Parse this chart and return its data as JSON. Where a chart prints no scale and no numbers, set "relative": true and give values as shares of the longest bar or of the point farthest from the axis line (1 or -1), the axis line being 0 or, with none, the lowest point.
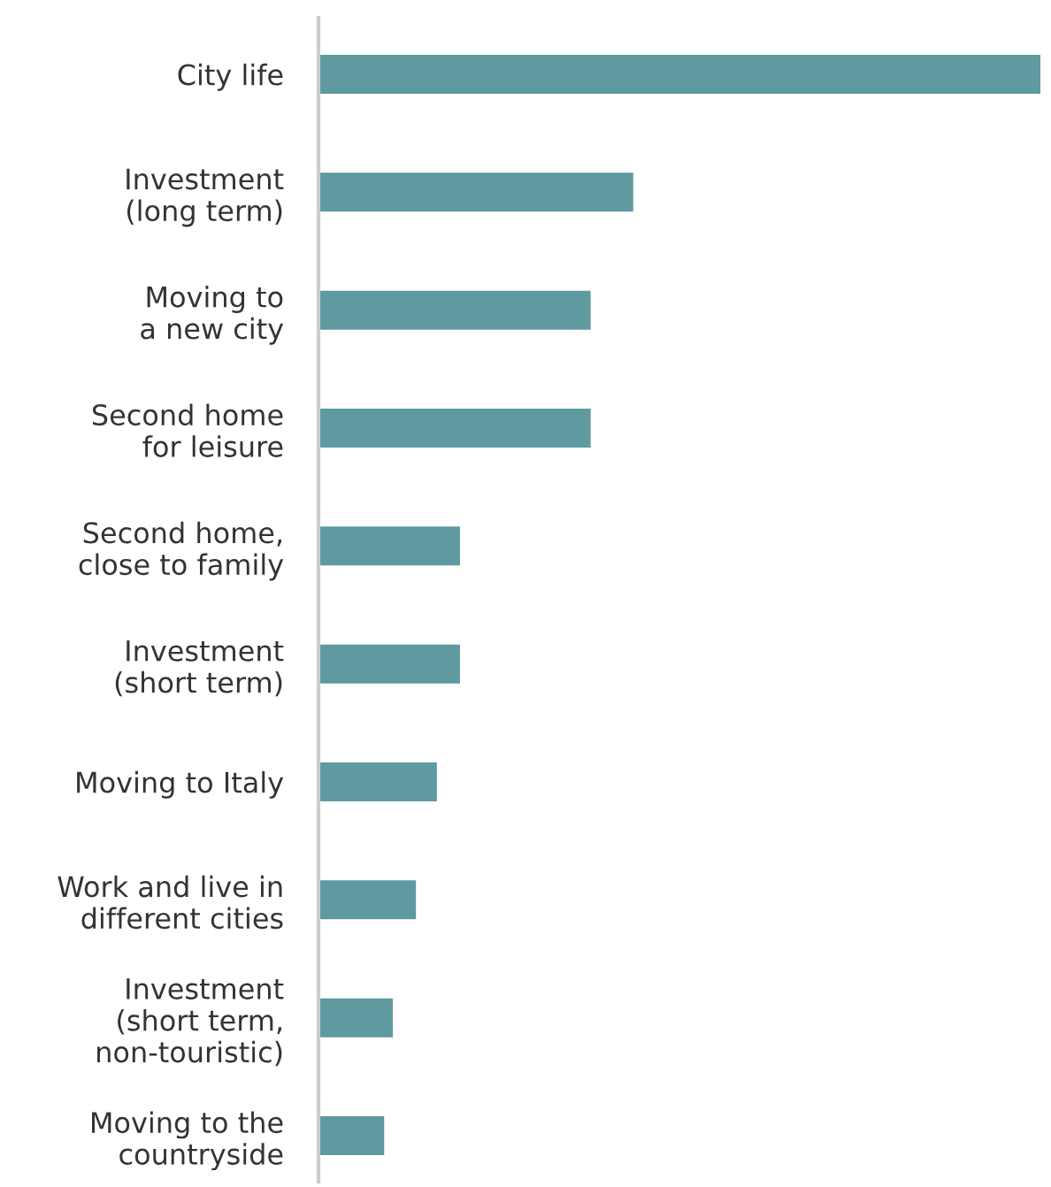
{
  "chart_data": {
    "type": "bar",
    "orientation": "horizontal",
    "relative": true,
    "categories": [
      "City life",
      "Investment\n(long term)",
      "Moving to\na new city",
      "Second home\nfor leisure",
      "Second home,\nclose to family",
      "Investment\n(short term)",
      "Moving to Italy",
      "Work and live in\ndifferent cities",
      "Investment\n(short term,\nnon-touristic)",
      "Moving to the\ncountryside"
    ],
    "values": [
      1,
      0.436,
      0.377,
      0.377,
      0.196,
      0.196,
      0.164,
      0.135,
      0.103,
      0.091
    ],
    "color": "#5e9aa0",
    "grid": false,
    "legend": false
  }
}
